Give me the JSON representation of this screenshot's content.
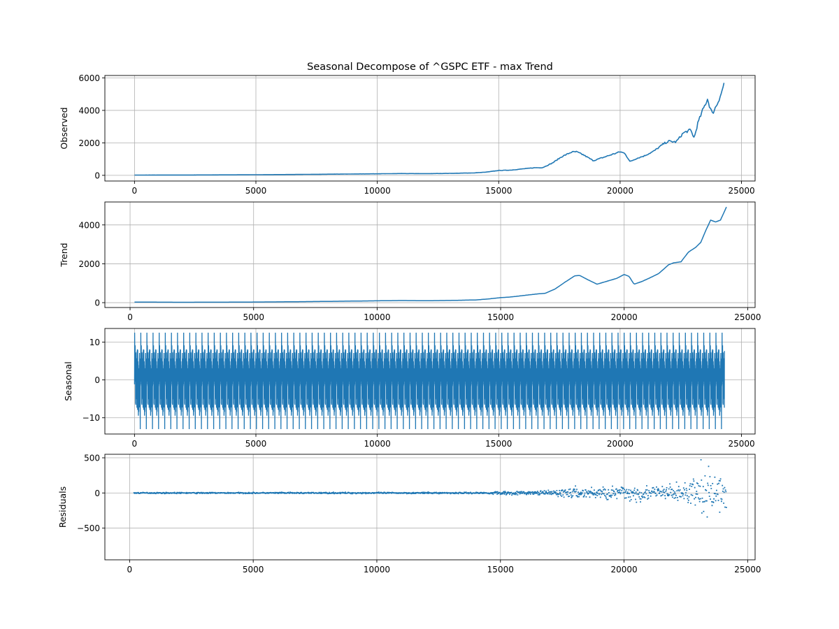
{
  "figure": {
    "title": "Seasonal Decompose of ^GSPC ETF - max Trend"
  },
  "colors": {
    "line": "#1f77b4",
    "grid": "#b0b0b0",
    "axis": "#000000"
  },
  "chart_data": [
    {
      "type": "line",
      "ylabel": "Observed",
      "grid": true,
      "xlim": [
        -1220,
        25560
      ],
      "ylim": [
        -350,
        6150
      ],
      "xticks": [
        0,
        5000,
        10000,
        15000,
        20000,
        25000
      ],
      "xtick_labels": [
        "0",
        "5000",
        "10000",
        "15000",
        "20000",
        "25000"
      ],
      "yticks": [
        0,
        2000,
        4000,
        6000
      ],
      "ytick_labels": [
        "0",
        "2000",
        "4000",
        "6000"
      ],
      "series": [
        {
          "x": [
            0,
            2000,
            4000,
            6000,
            8000,
            10000,
            11000,
            12000,
            13000,
            14000,
            14500,
            15000,
            15500,
            16000,
            16500,
            16800,
            17200,
            17600,
            18000,
            18200,
            18500,
            18900,
            19300,
            19700,
            20000,
            20200,
            20400,
            20700,
            21000,
            21400,
            21800,
            22000,
            22300,
            22600,
            22900,
            23050,
            23200,
            23400,
            23600,
            23700,
            23800,
            24000,
            24200,
            24300
          ],
          "y": [
            17,
            20,
            30,
            45,
            70,
            95,
            110,
            105,
            120,
            150,
            200,
            300,
            320,
            400,
            470,
            470,
            750,
            1150,
            1430,
            1450,
            1250,
            900,
            1100,
            1300,
            1450,
            1350,
            850,
            1050,
            1200,
            1500,
            1950,
            2100,
            2050,
            2600,
            2800,
            2300,
            3200,
            4000,
            4700,
            4200,
            3800,
            4400,
            5200,
            5800
          ]
        }
      ]
    },
    {
      "type": "line",
      "ylabel": "Trend",
      "grid": true,
      "xlim": [
        -1020,
        25300
      ],
      "ylim": [
        -250,
        5180
      ],
      "xticks": [
        0,
        5000,
        10000,
        15000,
        20000,
        25000
      ],
      "xtick_labels": [
        "0",
        "5000",
        "10000",
        "15000",
        "20000",
        "25000"
      ],
      "yticks": [
        0,
        2000,
        4000
      ],
      "ytick_labels": [
        "0",
        "2000",
        "4000"
      ],
      "series": [
        {
          "x": [
            180,
            2000,
            4000,
            6000,
            8000,
            10000,
            11000,
            12000,
            13000,
            14000,
            14500,
            15000,
            15300,
            15600,
            16000,
            16500,
            16800,
            17200,
            17600,
            18000,
            18200,
            18500,
            18900,
            19300,
            19700,
            20000,
            20200,
            20400,
            20700,
            21000,
            21400,
            21800,
            22000,
            22300,
            22600,
            22900,
            23100,
            23300,
            23500,
            23700,
            23900,
            24150
          ],
          "y": [
            30,
            20,
            25,
            40,
            65,
            95,
            110,
            100,
            115,
            140,
            190,
            260,
            280,
            320,
            380,
            450,
            480,
            700,
            1050,
            1380,
            1400,
            1200,
            950,
            1100,
            1250,
            1450,
            1350,
            950,
            1080,
            1250,
            1500,
            1950,
            2050,
            2100,
            2600,
            2850,
            3100,
            3700,
            4250,
            4150,
            4250,
            4950
          ]
        }
      ]
    },
    {
      "type": "line",
      "ylabel": "Seasonal",
      "grid": true,
      "xlim": [
        -1220,
        25560
      ],
      "ylim": [
        -14.3,
        13.6
      ],
      "xticks": [
        0,
        5000,
        10000,
        15000,
        20000,
        25000
      ],
      "xtick_labels": [
        "0",
        "5000",
        "10000",
        "15000",
        "20000",
        "25000"
      ],
      "yticks": [
        -10,
        0,
        10
      ],
      "ytick_labels": [
        "−10",
        "0",
        "10"
      ],
      "seasonal_period": 252,
      "seasonal_range": [
        -13,
        12.5
      ],
      "series": [
        {
          "x_range": [
            0,
            24300
          ]
        }
      ]
    },
    {
      "type": "scatter",
      "ylabel": "Residuals",
      "grid": true,
      "xlim": [
        -1000,
        25300
      ],
      "ylim": [
        -950,
        550
      ],
      "xticks": [
        0,
        5000,
        10000,
        15000,
        20000,
        25000
      ],
      "xtick_labels": [
        "0",
        "5000",
        "10000",
        "15000",
        "20000",
        "25000"
      ],
      "yticks": [
        -500,
        0,
        500
      ],
      "ytick_labels": [
        "−500",
        "0",
        "500"
      ],
      "series": [
        {
          "x_range": [
            180,
            24150
          ],
          "amplitude_x": [
            180,
            14500,
            15000,
            16000,
            17000,
            17500,
            18000,
            19000,
            20000,
            20300,
            21000,
            22000,
            22500,
            23000,
            23200,
            23500,
            23800,
            24150
          ],
          "amplitude_y": [
            15,
            20,
            60,
            40,
            60,
            130,
            150,
            170,
            200,
            300,
            180,
            250,
            300,
            500,
            850,
            450,
            550,
            500
          ]
        }
      ]
    }
  ]
}
